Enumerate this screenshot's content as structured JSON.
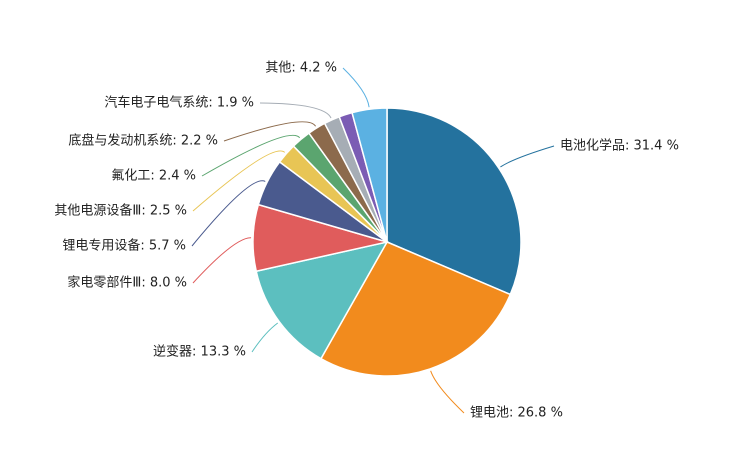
{
  "chart_data": {
    "type": "pie",
    "values": [
      31.4,
      26.8,
      13.3,
      8.0,
      5.7,
      2.5,
      2.4,
      2.2,
      1.9,
      1.6,
      4.2
    ],
    "value_labels": [
      "电池化学品: 31.4 %",
      "锂电池: 26.8 %",
      "逆变器: 13.3 %",
      "家电零部件Ⅲ: 8.0 %",
      "锂电专用设备: 5.7 %",
      "其他电源设备Ⅲ: 2.5 %",
      "氟化工: 2.4 %",
      "底盘与发动机系统: 2.2 %",
      "汽车电子电气系统: 1.9 %",
      null,
      "其他: 4.2 %"
    ],
    "colors": [
      "#24729e",
      "#f28b1d",
      "#5cbfbf",
      "#e05c5c",
      "#4a5a8e",
      "#e8c555",
      "#5ba56f",
      "#8c6a4c",
      "#a6adb5",
      "#7b5cb4",
      "#5bb1e2"
    ]
  }
}
